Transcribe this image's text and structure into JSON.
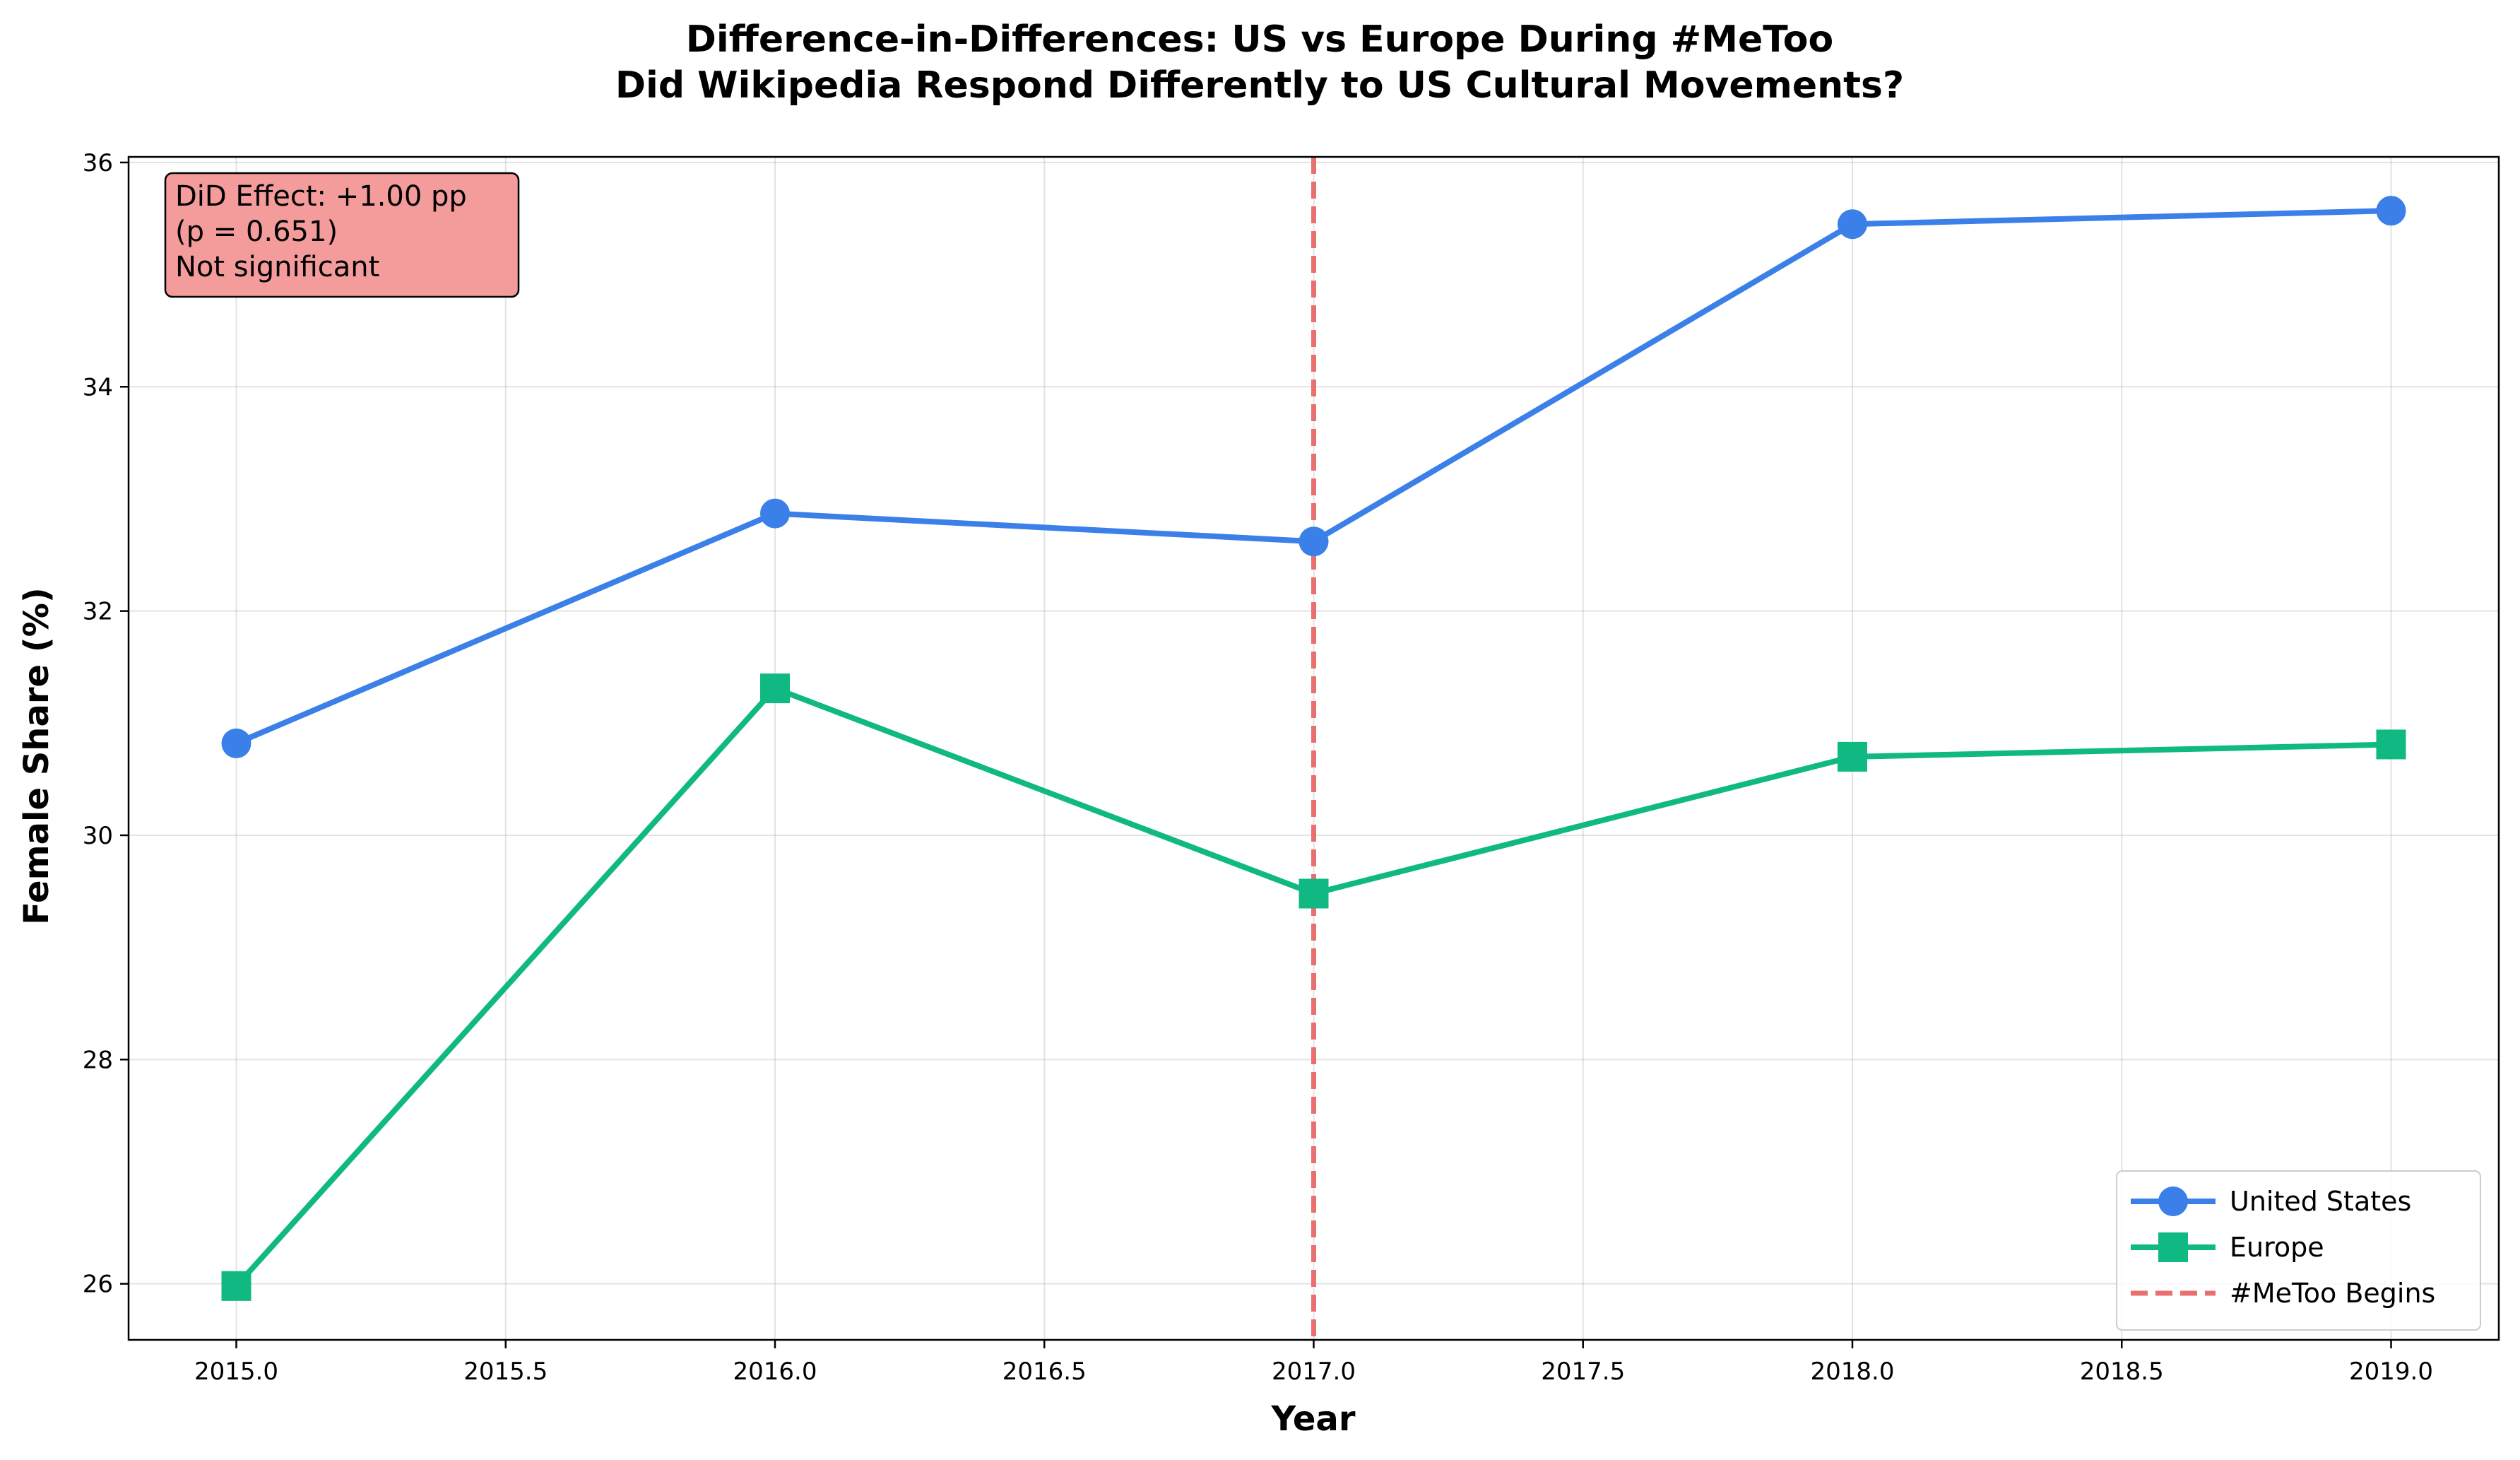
{
  "chart_data": {
    "type": "line",
    "title_lines": [
      "Difference-in-Differences: US vs Europe During #MeToo",
      "Did Wikipedia Respond Differently to US Cultural Movements?"
    ],
    "xlabel": "Year",
    "ylabel": "Female Share (%)",
    "xlim": [
      2014.8,
      2019.2
    ],
    "ylim": [
      25.5,
      36.05
    ],
    "x_ticks": [
      "2015.0",
      "2015.5",
      "2016.0",
      "2016.5",
      "2017.0",
      "2017.5",
      "2018.0",
      "2018.5",
      "2019.0"
    ],
    "x_tick_values": [
      2015.0,
      2015.5,
      2016.0,
      2016.5,
      2017.0,
      2017.5,
      2018.0,
      2018.5,
      2019.0
    ],
    "y_ticks": [
      "26",
      "28",
      "30",
      "32",
      "34",
      "36"
    ],
    "y_tick_values": [
      26,
      28,
      30,
      32,
      34,
      36
    ],
    "grid": true,
    "legend_position": "lower-right",
    "series": [
      {
        "name": "United States",
        "marker": "circle",
        "color": "#3b7fe8",
        "x": [
          2015,
          2016,
          2017,
          2018,
          2019
        ],
        "values": [
          30.82,
          32.87,
          32.62,
          35.45,
          35.57
        ]
      },
      {
        "name": "Europe",
        "marker": "square",
        "color": "#10b981",
        "x": [
          2015,
          2016,
          2017,
          2018,
          2019
        ],
        "values": [
          25.98,
          31.31,
          29.48,
          30.7,
          30.81
        ]
      }
    ],
    "reference_line": {
      "name": "#MeToo Begins",
      "x": 2017.0,
      "color": "#e8706f",
      "style": "dashed"
    },
    "annotation": {
      "lines": [
        "DiD Effect: +1.00 pp",
        "(p = 0.651)",
        "Not significant"
      ],
      "background": "#f49b9b",
      "position": "top-left"
    }
  }
}
